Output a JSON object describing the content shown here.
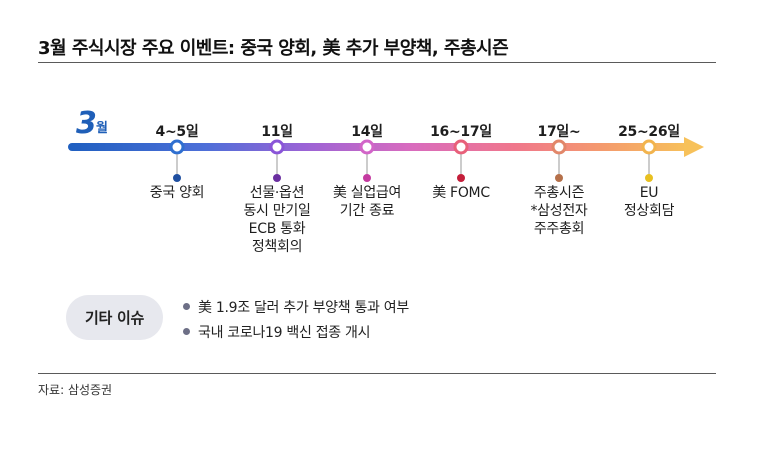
{
  "title": "3월 주식시장 주요 이벤트: 중국 양회, 美 추가 부양책, 주총시즌",
  "month": {
    "number": "3",
    "suffix": "월"
  },
  "events": [
    {
      "date": "4~5일",
      "color": "#1f4fa0",
      "lines": [
        "중국 양회"
      ]
    },
    {
      "date": "11일",
      "color": "#6a2fa0",
      "lines": [
        "선물·옵션",
        "동시 만기일",
        "ECB 통화",
        "정책회의"
      ]
    },
    {
      "date": "14일",
      "color": "#c43aa0",
      "lines": [
        "美 실업급여",
        "기간 종료"
      ]
    },
    {
      "date": "16~17일",
      "color": "#c41e3a",
      "lines": [
        "美 FOMC"
      ]
    },
    {
      "date": "17일~",
      "color": "#b5704a",
      "lines": [
        "주총시즌",
        "*삼성전자",
        "주주총회"
      ]
    },
    {
      "date": "25~26일",
      "color": "#e8c020",
      "lines": [
        "EU",
        "정상회담"
      ]
    }
  ],
  "others": {
    "label": "기타 이슈",
    "items": [
      "美 1.9조 달러 추가 부양책 통과 여부",
      "국내 코로나19 백신 접종 개시"
    ]
  },
  "source": "자료: 삼성증권"
}
